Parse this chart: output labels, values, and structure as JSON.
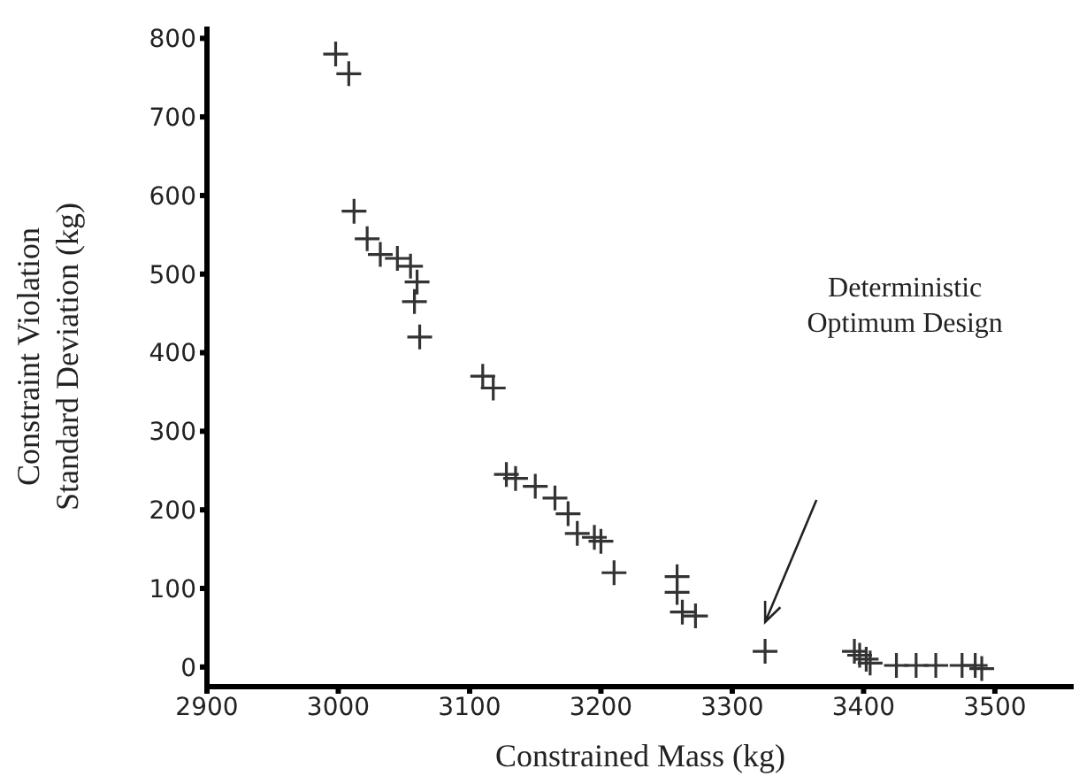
{
  "chart_data": {
    "type": "scatter",
    "xlabel": "Constrained Mass (kg)",
    "ylabel": "Constraint Violation\nStandard Deviation (kg)",
    "x": [
      2998,
      3008,
      3012,
      3022,
      3032,
      3045,
      3055,
      3060,
      3058,
      3062,
      3110,
      3118,
      3128,
      3135,
      3150,
      3165,
      3175,
      3182,
      3195,
      3200,
      3210,
      3258,
      3258,
      3262,
      3272,
      3325,
      3393,
      3397,
      3402,
      3405,
      3425,
      3440,
      3455,
      3475,
      3485,
      3490
    ],
    "series": [
      {
        "color": "#333333",
        "values": [
          780,
          755,
          580,
          545,
          525,
          520,
          510,
          490,
          465,
          420,
          370,
          355,
          245,
          240,
          230,
          215,
          195,
          170,
          165,
          160,
          120,
          115,
          95,
          70,
          65,
          20,
          20,
          15,
          10,
          5,
          2,
          2,
          2,
          2,
          2,
          -2
        ]
      }
    ],
    "xlim": [
      2900,
      3560
    ],
    "xticks": [
      2900,
      3000,
      3100,
      3200,
      3300,
      3400,
      3500
    ],
    "ylim": [
      -25,
      815
    ],
    "yticks": [
      0,
      100,
      200,
      300,
      400,
      500,
      600,
      700,
      800
    ],
    "marker": "cross",
    "grid": false,
    "annotations": [
      "Deterministic\nOptimum Design"
    ]
  }
}
